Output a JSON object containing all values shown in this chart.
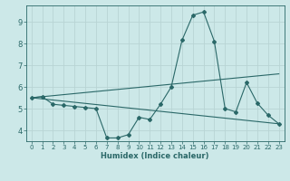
{
  "xlabel": "Humidex (Indice chaleur)",
  "xlim": [
    -0.5,
    23.5
  ],
  "ylim": [
    3.5,
    9.75
  ],
  "yticks": [
    4,
    5,
    6,
    7,
    8,
    9
  ],
  "xticks": [
    0,
    1,
    2,
    3,
    4,
    5,
    6,
    7,
    8,
    9,
    10,
    11,
    12,
    13,
    14,
    15,
    16,
    17,
    18,
    19,
    20,
    21,
    22,
    23
  ],
  "bg_color": "#cce8e8",
  "grid_color": "#b8d4d4",
  "line_color": "#2a6868",
  "line1_x": [
    0,
    1,
    2,
    3,
    4,
    5,
    6,
    7,
    8,
    9,
    10,
    11,
    12,
    13,
    14,
    15,
    16,
    17,
    18,
    19,
    20,
    21,
    22,
    23
  ],
  "line1_y": [
    5.5,
    5.55,
    5.2,
    5.15,
    5.1,
    5.05,
    5.0,
    3.65,
    3.65,
    3.8,
    4.6,
    4.5,
    5.2,
    6.0,
    8.15,
    9.3,
    9.45,
    8.1,
    5.0,
    4.85,
    6.2,
    5.25,
    4.7,
    4.3
  ],
  "line2_x": [
    0,
    23
  ],
  "line2_y": [
    5.5,
    6.6
  ],
  "line3_x": [
    0,
    23
  ],
  "line3_y": [
    5.5,
    4.3
  ]
}
